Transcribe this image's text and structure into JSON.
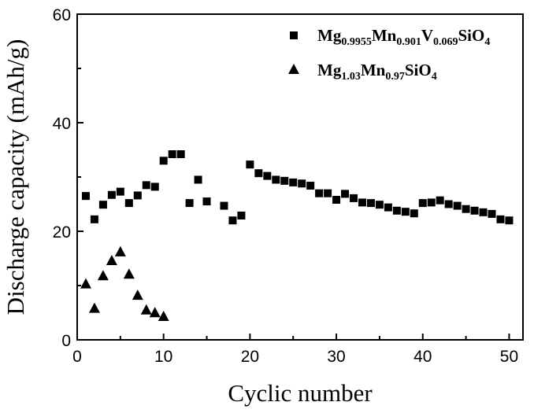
{
  "chart_data": {
    "type": "scatter",
    "title": "",
    "xlabel": "Cyclic number",
    "ylabel": "Discharge capacity (mAh/g)",
    "xlim": [
      0,
      51.6
    ],
    "ylim": [
      0,
      60
    ],
    "xticks": [
      0,
      10,
      20,
      30,
      40,
      50
    ],
    "yticks": [
      0,
      20,
      40,
      60
    ],
    "grid": false,
    "legend_position": "top-right",
    "series": [
      {
        "name": "Mg0.9955Mn0.901V0.069SiO4",
        "label_parts": [
          [
            "Mg",
            ""
          ],
          [
            "0.9955",
            "sub"
          ],
          [
            "Mn",
            ""
          ],
          [
            "0.901",
            "sub"
          ],
          [
            "V",
            ""
          ],
          [
            "0.069",
            "sub"
          ],
          [
            "SiO",
            ""
          ],
          [
            "4",
            "sub"
          ]
        ],
        "marker": "square",
        "color": "#000000",
        "x": [
          1,
          2,
          3,
          4,
          5,
          6,
          7,
          8,
          9,
          10,
          11,
          12,
          13,
          14,
          15,
          17,
          18,
          19,
          20,
          21,
          22,
          23,
          24,
          25,
          26,
          27,
          28,
          29,
          30,
          31,
          32,
          33,
          34,
          35,
          36,
          37,
          38,
          39,
          40,
          41,
          42,
          43,
          44,
          45,
          46,
          47,
          48,
          49,
          50
        ],
        "y": [
          26.5,
          22.2,
          24.9,
          26.7,
          27.3,
          25.2,
          26.6,
          28.5,
          28.2,
          33.0,
          34.2,
          34.2,
          25.2,
          29.5,
          25.5,
          24.7,
          22.0,
          22.9,
          32.3,
          30.7,
          30.2,
          29.5,
          29.3,
          29.0,
          28.8,
          28.4,
          27.0,
          27.0,
          25.8,
          26.9,
          26.1,
          25.3,
          25.2,
          24.9,
          24.4,
          23.8,
          23.6,
          23.3,
          25.2,
          25.3,
          25.7,
          25.0,
          24.7,
          24.1,
          23.8,
          23.5,
          23.2,
          22.2,
          22.0
        ]
      },
      {
        "name": "Mg1.03Mn0.97SiO4",
        "label_parts": [
          [
            "Mg",
            ""
          ],
          [
            "1.03",
            "sub"
          ],
          [
            "Mn",
            ""
          ],
          [
            "0.97",
            "sub"
          ],
          [
            "SiO",
            ""
          ],
          [
            "4",
            "sub"
          ]
        ],
        "marker": "triangle",
        "color": "#000000",
        "x": [
          1,
          2,
          3,
          4,
          5,
          6,
          7,
          8,
          9,
          10
        ],
        "y": [
          10.2,
          5.7,
          11.7,
          14.5,
          16.1,
          12.0,
          8.1,
          5.4,
          4.9,
          4.2
        ]
      }
    ]
  }
}
